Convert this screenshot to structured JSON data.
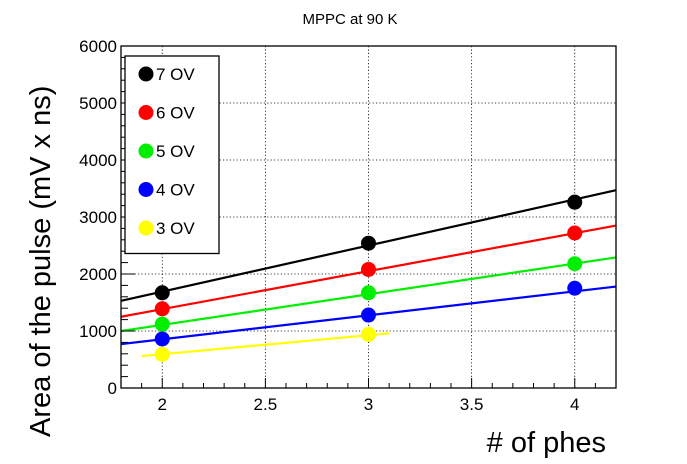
{
  "chart_data": {
    "type": "scatter",
    "title": "MPPC at 90 K",
    "xlabel": "# of phes",
    "ylabel": "Area of the pulse (mV x ns)",
    "xlim": [
      1.8,
      4.2
    ],
    "ylim": [
      0,
      6000
    ],
    "xticks": [
      2,
      2.5,
      3,
      3.5,
      4
    ],
    "xtick_labels": [
      "2",
      "2.5",
      "3",
      "3.5",
      "4"
    ],
    "yticks": [
      0,
      1000,
      2000,
      3000,
      4000,
      5000,
      6000
    ],
    "ytick_labels": [
      "0",
      "1000",
      "2000",
      "3000",
      "4000",
      "5000",
      "6000"
    ],
    "grid": true,
    "legend_position": "top-left",
    "series": [
      {
        "name": "7 OV",
        "color": "#000000",
        "x": [
          2,
          3,
          4
        ],
        "values": [
          1670,
          2540,
          3260
        ],
        "fit_x": [
          1.8,
          4.2
        ],
        "fit_y": [
          1530,
          3470
        ]
      },
      {
        "name": "6 OV",
        "color": "#ff0000",
        "x": [
          2,
          3,
          4
        ],
        "values": [
          1390,
          2080,
          2720
        ],
        "fit_x": [
          1.8,
          4.2
        ],
        "fit_y": [
          1250,
          2850
        ]
      },
      {
        "name": "5 OV",
        "color": "#00ee00",
        "x": [
          2,
          3,
          4
        ],
        "values": [
          1120,
          1670,
          2180
        ],
        "fit_x": [
          1.8,
          4.2
        ],
        "fit_y": [
          1000,
          2290
        ]
      },
      {
        "name": "4 OV",
        "color": "#0000ff",
        "x": [
          2,
          3,
          4
        ],
        "values": [
          860,
          1280,
          1750
        ],
        "fit_x": [
          1.8,
          4.2
        ],
        "fit_y": [
          770,
          1780
        ]
      },
      {
        "name": "3 OV",
        "color": "#ffff00",
        "x": [
          2,
          3
        ],
        "values": [
          590,
          940
        ],
        "fit_x": [
          1.9,
          3.1
        ],
        "fit_y": [
          560,
          960
        ]
      }
    ]
  }
}
